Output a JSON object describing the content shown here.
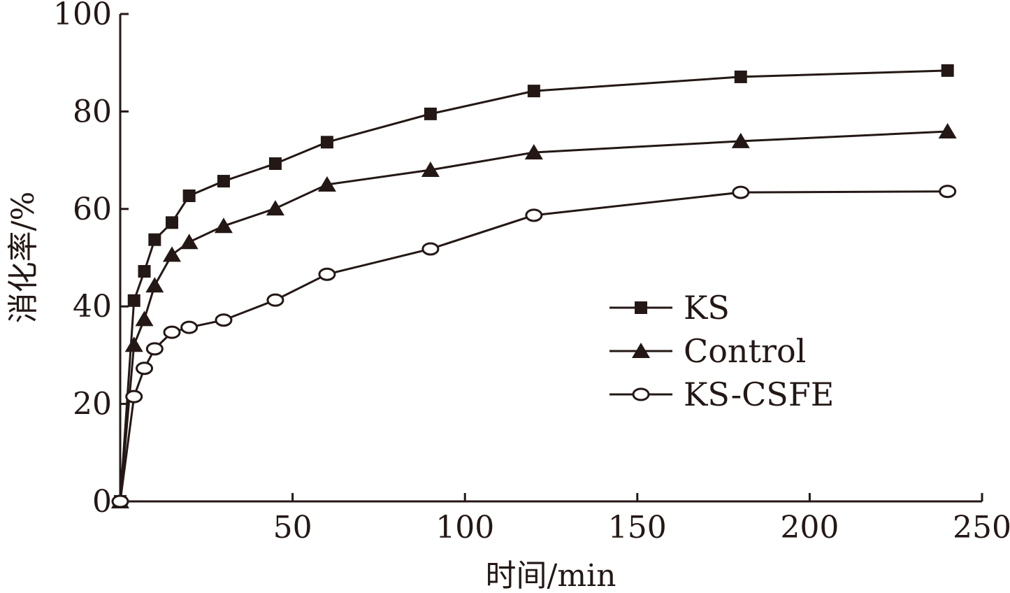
{
  "chart_data": {
    "type": "line",
    "title": "",
    "xlabel": "时间/min",
    "ylabel": "消化率/%",
    "xlim": [
      0,
      250
    ],
    "ylim": [
      0,
      100
    ],
    "xticks": [
      50,
      100,
      150,
      200,
      250
    ],
    "yticks": [
      0,
      20,
      40,
      60,
      80,
      100
    ],
    "grid": false,
    "legend_position": "center-right",
    "x": [
      0,
      4,
      7,
      10,
      15,
      20,
      30,
      45,
      60,
      90,
      120,
      180,
      240
    ],
    "series": [
      {
        "name": "KS",
        "marker": "square",
        "values": [
          0,
          41.2,
          47.2,
          53.7,
          57.2,
          62.7,
          65.7,
          69.3,
          73.7,
          79.5,
          84.2,
          87.1,
          88.4
        ]
      },
      {
        "name": "Control",
        "marker": "triangle",
        "values": [
          0,
          32.1,
          37.4,
          44.3,
          50.6,
          53.2,
          56.5,
          60.1,
          65.0,
          68.0,
          71.6,
          73.9,
          75.9
        ]
      },
      {
        "name": "KS-CSFE",
        "marker": "circle-open",
        "values": [
          0,
          21.5,
          27.3,
          31.3,
          34.7,
          35.7,
          37.2,
          41.3,
          46.6,
          51.8,
          58.7,
          63.4,
          63.6
        ]
      }
    ],
    "colors": {
      "ink": "#231815",
      "background": "#ffffff"
    }
  }
}
